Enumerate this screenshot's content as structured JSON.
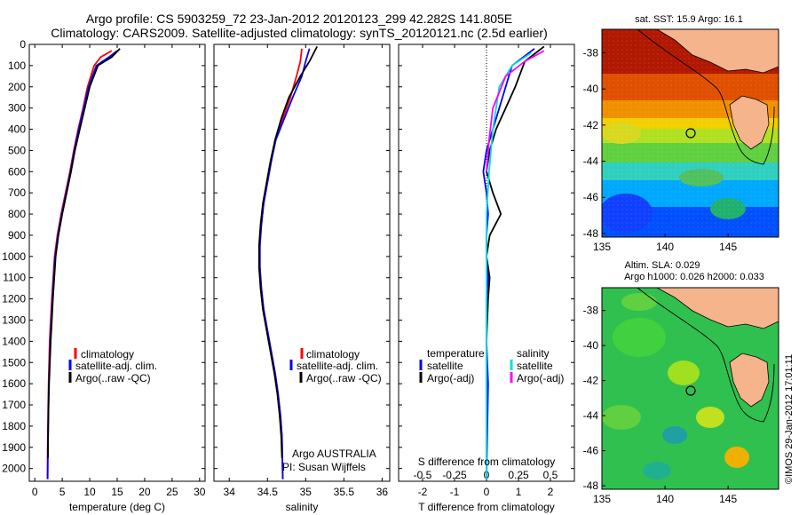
{
  "title_line1": "Argo profile: CS 5903259_72 23-Jan-2012 20120123_299 42.282S 141.805E",
  "title_line2": "Climatology: CARS2009. Satellite-adjusted climatology: synTS_20120121.nc (2.5d earlier)",
  "colors": {
    "climatology": "#ff0000",
    "satellite": "#0000ff",
    "argo": "#000000",
    "sat_diff": "#00e0e0",
    "argo_diff": "#ff00ff",
    "land": "#f5b48c"
  },
  "chart_data": [
    {
      "type": "line",
      "id": "temperature",
      "xlabel": "temperature (deg C)",
      "ylabel": "",
      "xlim": [
        -1,
        31
      ],
      "ylim": [
        2060,
        0
      ],
      "xticks": [
        0,
        5,
        10,
        15,
        20,
        25,
        30
      ],
      "yticks": [
        0,
        100,
        200,
        300,
        400,
        500,
        600,
        700,
        800,
        900,
        1000,
        1100,
        1200,
        1300,
        1400,
        1500,
        1600,
        1700,
        1800,
        1900,
        2000
      ],
      "legend": [
        "climatology",
        "satellite-adj. clim.",
        "Argo(..raw -QC)"
      ],
      "legend_position": "lower-center",
      "series": [
        {
          "name": "climatology",
          "color": "#ff0000",
          "x": [
            14.0,
            12.0,
            10.8,
            9.6,
            8.8,
            7.9,
            7.1,
            6.4,
            5.6,
            4.8,
            4.1,
            3.6,
            3.1,
            2.9,
            2.7,
            2.6,
            2.5,
            2.45,
            2.4,
            2.35,
            2.3
          ],
          "y": [
            30,
            60,
            100,
            200,
            300,
            400,
            500,
            600,
            700,
            800,
            900,
            1000,
            1200,
            1300,
            1400,
            1500,
            1600,
            1700,
            1800,
            1900,
            2050
          ]
        },
        {
          "name": "satellite-adj. clim.",
          "color": "#0000ff",
          "x": [
            15.0,
            13.5,
            11.2,
            9.8,
            8.9,
            8.0,
            7.2,
            6.5,
            5.7,
            4.9,
            4.2,
            3.7,
            3.2,
            3.0,
            2.8,
            2.7,
            2.55,
            2.5,
            2.45,
            2.4,
            2.35
          ],
          "y": [
            30,
            60,
            100,
            200,
            300,
            400,
            500,
            600,
            700,
            800,
            900,
            1000,
            1200,
            1300,
            1400,
            1500,
            1600,
            1700,
            1800,
            1900,
            2050
          ]
        },
        {
          "name": "Argo(..raw -QC)",
          "color": "#000000",
          "x": [
            15.5,
            14.0,
            11.5,
            10.0,
            9.1,
            8.2,
            7.3,
            6.6,
            5.8,
            5.0,
            4.3,
            3.8,
            3.3,
            3.1,
            2.9,
            2.75,
            2.6,
            2.5,
            2.45,
            2.4
          ],
          "y": [
            20,
            60,
            100,
            200,
            300,
            400,
            500,
            600,
            700,
            800,
            900,
            1000,
            1200,
            1300,
            1400,
            1500,
            1600,
            1700,
            1800,
            1950
          ]
        }
      ]
    },
    {
      "type": "line",
      "id": "salinity",
      "xlabel": "salinity",
      "xlim": [
        33.8,
        36.1
      ],
      "ylim": [
        2060,
        0
      ],
      "xticks": [
        34,
        34.5,
        35,
        35.5,
        36
      ],
      "legend": [
        "climatology",
        "satellite-adj. clim.",
        "Argo(..raw -QC)"
      ],
      "legend_position": "lower-right",
      "annotation": [
        "Argo AUSTRALIA",
        "PI: Susan Wijffels"
      ],
      "series": [
        {
          "name": "climatology",
          "color": "#ff0000",
          "x": [
            34.95,
            34.93,
            34.88,
            34.8,
            34.7,
            34.6,
            34.55,
            34.5,
            34.45,
            34.42,
            34.4,
            34.4,
            34.42,
            34.45,
            34.5,
            34.55,
            34.6,
            34.64,
            34.67,
            34.69,
            34.7
          ],
          "y": [
            20,
            80,
            150,
            250,
            350,
            450,
            550,
            650,
            750,
            850,
            950,
            1050,
            1150,
            1250,
            1350,
            1450,
            1550,
            1650,
            1750,
            1850,
            2050
          ]
        },
        {
          "name": "satellite-adj. clim.",
          "color": "#0000ff",
          "x": [
            35.05,
            35.0,
            34.95,
            34.83,
            34.72,
            34.61,
            34.55,
            34.5,
            34.45,
            34.42,
            34.4,
            34.4,
            34.42,
            34.45,
            34.5,
            34.55,
            34.6,
            34.64,
            34.67,
            34.69,
            34.7
          ],
          "y": [
            20,
            80,
            150,
            250,
            350,
            450,
            550,
            650,
            750,
            850,
            950,
            1050,
            1150,
            1250,
            1350,
            1450,
            1550,
            1650,
            1750,
            1850,
            2050
          ]
        },
        {
          "name": "Argo(..raw -QC)",
          "color": "#000000",
          "x": [
            35.15,
            35.05,
            34.93,
            34.78,
            34.68,
            34.6,
            34.54,
            34.49,
            34.44,
            34.41,
            34.39,
            34.39,
            34.41,
            34.44,
            34.49,
            34.54,
            34.59,
            34.63,
            34.66,
            34.68,
            34.69
          ],
          "y": [
            10,
            80,
            150,
            250,
            350,
            450,
            550,
            650,
            750,
            850,
            950,
            1050,
            1150,
            1250,
            1350,
            1450,
            1550,
            1650,
            1750,
            1850,
            1950
          ]
        }
      ]
    },
    {
      "type": "line",
      "id": "differences",
      "xlabel": "T difference from climatology",
      "xlabel_top": "S difference from climatology",
      "xlim": [
        -2.75,
        2.75
      ],
      "ylim": [
        2060,
        0
      ],
      "xticks_T": [
        -2,
        -1,
        0,
        1,
        2
      ],
      "xticks_S": [
        "-0.5",
        "-0.25",
        "0",
        "0.25",
        "0.5"
      ],
      "legend_temperature_title": "temperature",
      "legend_salinity_title": "salinity",
      "legend_temperature": [
        "satellite",
        "Argo(-adj)"
      ],
      "legend_salinity": [
        "satellite",
        "Argo(-adj)"
      ],
      "series": [
        {
          "name": "T satellite",
          "color": "#0000ff",
          "x": [
            1.5,
            0.8,
            0.6,
            0.4,
            0.2,
            0.0,
            -0.1,
            0.0,
            0.05,
            0.0,
            0.0,
            0.05,
            0.0,
            0.0,
            0.05,
            0.0
          ],
          "y": [
            20,
            100,
            200,
            300,
            400,
            500,
            600,
            700,
            800,
            900,
            1000,
            1100,
            1200,
            1400,
            1600,
            2050
          ]
        },
        {
          "name": "T Argo(-adj)",
          "color": "#000000",
          "x": [
            1.8,
            1.2,
            0.9,
            0.6,
            0.3,
            0.1,
            0.0,
            0.2,
            0.45,
            0.1,
            0.0,
            0.1,
            0.05,
            0.0,
            0.0,
            0.0
          ],
          "y": [
            10,
            80,
            200,
            300,
            400,
            500,
            600,
            700,
            800,
            900,
            1000,
            1100,
            1200,
            1400,
            1600,
            1950
          ]
        },
        {
          "name": "S satellite",
          "color": "#00e0e0",
          "x": [
            0.35,
            0.2,
            0.1,
            0.05,
            0.02,
            0.0,
            0.0,
            0.0,
            0.0,
            0.0
          ],
          "y": [
            40,
            100,
            200,
            400,
            600,
            800,
            1000,
            1400,
            1800,
            2050
          ]
        },
        {
          "name": "S Argo(-adj)",
          "color": "#ff00ff",
          "x": [
            0.45,
            0.3,
            0.15,
            0.05,
            0.02,
            0.0
          ],
          "y": [
            30,
            80,
            150,
            300,
            450,
            600
          ]
        }
      ]
    },
    {
      "type": "heatmap",
      "id": "sst_map",
      "title": "sat. SST: 15.9 Argo: 16.1",
      "xlim": [
        135,
        149
      ],
      "ylim": [
        -48.2,
        -36.7
      ],
      "xticks": [
        135,
        140,
        145
      ],
      "yticks": [
        -38,
        -40,
        -42,
        -44,
        -46,
        -48
      ],
      "marker": {
        "lon": 141.8,
        "lat": -42.28
      }
    },
    {
      "type": "heatmap",
      "id": "sla_map",
      "title_line1": "Altim. SLA: 0.029",
      "title_line2": "Argo h1000: 0.026 h2000: 0.033",
      "xlim": [
        135,
        149
      ],
      "ylim": [
        -48.2,
        -36.7
      ],
      "xticks": [
        135,
        140,
        145
      ],
      "yticks": [
        -38,
        -40,
        -42,
        -44,
        -46,
        -48
      ],
      "marker": {
        "lon": 141.8,
        "lat": -42.28
      }
    }
  ],
  "credit": "©IMOS 29-Jan-2012 17:01:11"
}
